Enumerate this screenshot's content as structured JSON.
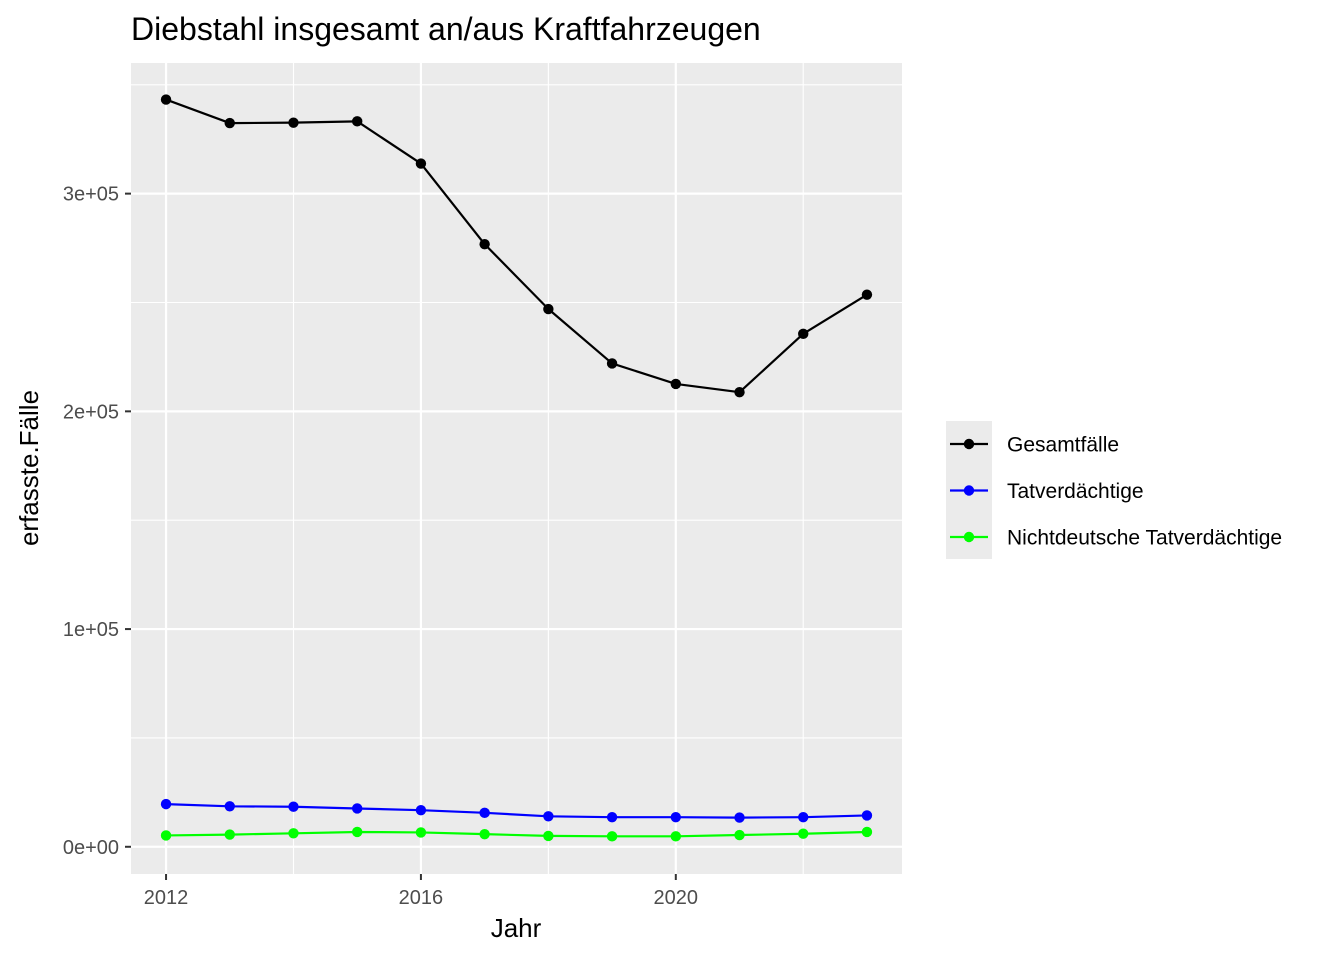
{
  "chart_data": {
    "type": "line",
    "title": "Diebstahl insgesamt an/aus Kraftfahrzeugen",
    "xlabel": "Jahr",
    "ylabel": "erfasste.Fälle",
    "x": [
      2012,
      2013,
      2014,
      2015,
      2016,
      2017,
      2018,
      2019,
      2020,
      2021,
      2022,
      2023
    ],
    "xlim": [
      2011.45,
      2023.55
    ],
    "ylim": [
      -12500,
      360000
    ],
    "x_ticks": [
      2012,
      2016,
      2020
    ],
    "x_tick_labels": [
      "2012",
      "2016",
      "2020"
    ],
    "x_minor_ticks": [
      2014,
      2018,
      2022
    ],
    "y_ticks": [
      0,
      100000,
      200000,
      300000
    ],
    "y_tick_labels": [
      "0e+00",
      "1e+05",
      "2e+05",
      "3e+05"
    ],
    "y_minor_ticks": [
      50000,
      150000,
      250000,
      350000
    ],
    "grid": true,
    "legend_position": "right",
    "series": [
      {
        "name": "Gesamtfälle",
        "color": "#000000",
        "values": [
          343200,
          332400,
          332600,
          333200,
          313800,
          276800,
          247000,
          222000,
          212600,
          208800,
          235600,
          253600
        ]
      },
      {
        "name": "Tatverdächtige",
        "color": "#0000ff",
        "values": [
          19600,
          18600,
          18400,
          17600,
          16800,
          15600,
          14000,
          13600,
          13600,
          13400,
          13600,
          14400
        ]
      },
      {
        "name": "Nichtdeutsche Tatverdächtige",
        "color": "#00ff00",
        "values": [
          5200,
          5600,
          6200,
          6800,
          6600,
          5800,
          5000,
          4800,
          4800,
          5400,
          6000,
          6800
        ]
      }
    ]
  }
}
